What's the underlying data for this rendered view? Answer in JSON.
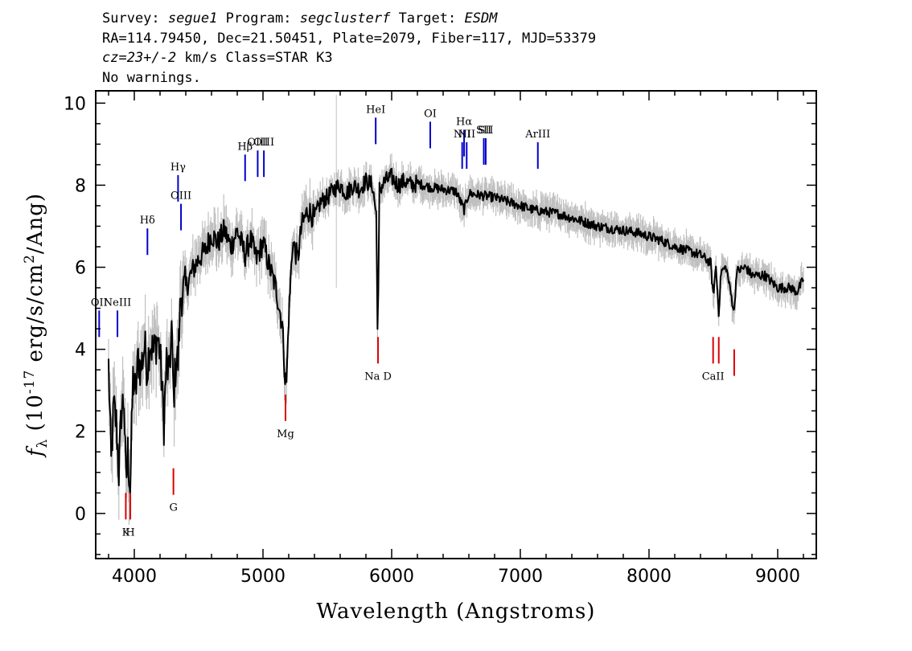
{
  "header": {
    "survey_label": "Survey:",
    "survey": "segue1",
    "program_label": "Program:",
    "program": "segclusterf",
    "target_label": "Target:",
    "target": "ESDM",
    "line2": "RA=114.79450, Dec=21.50451, Plate=2079, Fiber=117, MJD=53379",
    "cz": "cz=23+/-2",
    "cz_rest": " km/s Class=STAR K3",
    "warnings": "No warnings."
  },
  "chart_data": {
    "type": "line",
    "xlabel": "Wavelength (Angstroms)",
    "ylabel": "f_λ (10^-17 erg/s/cm^2/Ang)",
    "xlim": [
      3700,
      9300
    ],
    "ylim": [
      -1.1,
      10.3
    ],
    "xticks": [
      4000,
      5000,
      6000,
      7000,
      8000,
      9000
    ],
    "yticks": [
      0,
      2,
      4,
      6,
      8,
      10
    ],
    "colors": {
      "flux": "#000000",
      "error_band": "#c0c0c0",
      "emission": "#0000cc",
      "absorption": "#dd0000"
    },
    "series": [
      {
        "points": [
          [
            3800,
            3.6
          ],
          [
            3820,
            1.2
          ],
          [
            3840,
            2.6
          ],
          [
            3860,
            2.2
          ],
          [
            3880,
            1.0
          ],
          [
            3900,
            2.5
          ],
          [
            3920,
            2.8
          ],
          [
            3935,
            0.7
          ],
          [
            3950,
            1.5
          ],
          [
            3968,
            0.6
          ],
          [
            3990,
            3.3
          ],
          [
            4010,
            2.9
          ],
          [
            4030,
            3.8
          ],
          [
            4050,
            3.5
          ],
          [
            4080,
            4.1
          ],
          [
            4101,
            3.5
          ],
          [
            4120,
            4.2
          ],
          [
            4150,
            3.9
          ],
          [
            4180,
            4.3
          ],
          [
            4200,
            3.9
          ],
          [
            4230,
            2.2
          ],
          [
            4250,
            3.7
          ],
          [
            4270,
            3.3
          ],
          [
            4290,
            4.5
          ],
          [
            4305,
            2.8
          ],
          [
            4325,
            3.8
          ],
          [
            4340,
            3.7
          ],
          [
            4360,
            5.3
          ],
          [
            4400,
            5.5
          ],
          [
            4450,
            5.9
          ],
          [
            4500,
            6.2
          ],
          [
            4550,
            6.4
          ],
          [
            4600,
            6.8
          ],
          [
            4650,
            6.6
          ],
          [
            4700,
            6.9
          ],
          [
            4750,
            6.5
          ],
          [
            4800,
            6.9
          ],
          [
            4861,
            6.3
          ],
          [
            4900,
            6.7
          ],
          [
            4950,
            6.2
          ],
          [
            5000,
            6.6
          ],
          [
            5050,
            6.0
          ],
          [
            5100,
            5.5
          ],
          [
            5150,
            4.6
          ],
          [
            5172,
            3.3
          ],
          [
            5183,
            3.2
          ],
          [
            5200,
            4.8
          ],
          [
            5230,
            6.6
          ],
          [
            5270,
            6.2
          ],
          [
            5300,
            7.0
          ],
          [
            5350,
            7.4
          ],
          [
            5400,
            7.2
          ],
          [
            5450,
            7.6
          ],
          [
            5500,
            7.7
          ],
          [
            5550,
            7.9
          ],
          [
            5600,
            8.0
          ],
          [
            5650,
            7.8
          ],
          [
            5700,
            8.0
          ],
          [
            5750,
            7.9
          ],
          [
            5800,
            8.1
          ],
          [
            5850,
            8.0
          ],
          [
            5880,
            7.3
          ],
          [
            5890,
            4.7
          ],
          [
            5896,
            5.2
          ],
          [
            5905,
            7.9
          ],
          [
            5950,
            8.1
          ],
          [
            6000,
            8.2
          ],
          [
            6050,
            8.0
          ],
          [
            6100,
            8.1
          ],
          [
            6150,
            8.0
          ],
          [
            6200,
            8.05
          ],
          [
            6300,
            7.95
          ],
          [
            6400,
            7.9
          ],
          [
            6500,
            7.85
          ],
          [
            6563,
            7.4
          ],
          [
            6600,
            7.8
          ],
          [
            6700,
            7.75
          ],
          [
            6800,
            7.7
          ],
          [
            6900,
            7.6
          ],
          [
            7000,
            7.5
          ],
          [
            7100,
            7.4
          ],
          [
            7200,
            7.35
          ],
          [
            7300,
            7.3
          ],
          [
            7400,
            7.2
          ],
          [
            7500,
            7.1
          ],
          [
            7600,
            7.0
          ],
          [
            7700,
            6.95
          ],
          [
            7800,
            6.9
          ],
          [
            7900,
            6.85
          ],
          [
            8000,
            6.75
          ],
          [
            8100,
            6.65
          ],
          [
            8200,
            6.5
          ],
          [
            8300,
            6.4
          ],
          [
            8400,
            6.3
          ],
          [
            8480,
            6.1
          ],
          [
            8498,
            5.3
          ],
          [
            8520,
            6.0
          ],
          [
            8542,
            4.9
          ],
          [
            8560,
            5.9
          ],
          [
            8600,
            6.0
          ],
          [
            8662,
            4.9
          ],
          [
            8680,
            5.9
          ],
          [
            8750,
            6.0
          ],
          [
            8800,
            5.8
          ],
          [
            8900,
            5.8
          ],
          [
            9000,
            5.5
          ],
          [
            9100,
            5.5
          ],
          [
            9150,
            5.4
          ],
          [
            9200,
            5.7
          ]
        ]
      }
    ],
    "emission_lines": [
      {
        "label": "OII",
        "wave": 3727,
        "flux": 4.3
      },
      {
        "label": "NeIII",
        "wave": 3869,
        "flux": 4.3
      },
      {
        "label": "Hδ",
        "wave": 4102,
        "flux": 6.3
      },
      {
        "label": "Hγ",
        "wave": 4340,
        "flux": 7.6
      },
      {
        "label": "OIII",
        "wave": 4363,
        "flux": 6.9
      },
      {
        "label": "Hβ",
        "wave": 4861,
        "flux": 8.1
      },
      {
        "label": "OIII",
        "wave": 4959,
        "flux": 8.2
      },
      {
        "label": "OIII",
        "wave": 5007,
        "flux": 8.2
      },
      {
        "label": "HeI",
        "wave": 5876,
        "flux": 9.0
      },
      {
        "label": "OI",
        "wave": 6300,
        "flux": 8.9
      },
      {
        "label": "NII",
        "wave": 6548,
        "flux": 8.4
      },
      {
        "label": "Hα",
        "wave": 6563,
        "flux": 8.7
      },
      {
        "label": "NII",
        "wave": 6583,
        "flux": 8.4
      },
      {
        "label": "SII",
        "wave": 6716,
        "flux": 8.5
      },
      {
        "label": "SII",
        "wave": 6731,
        "flux": 8.5
      },
      {
        "label": "ArIII",
        "wave": 7136,
        "flux": 8.4
      }
    ],
    "absorption_lines": [
      {
        "label": "K",
        "wave": 3934,
        "flux": 0.5
      },
      {
        "label": "H",
        "wave": 3969,
        "flux": 0.5
      },
      {
        "label": "G",
        "wave": 4304,
        "flux": 1.1
      },
      {
        "label": "Mg",
        "wave": 5175,
        "flux": 2.9
      },
      {
        "label": "Na D",
        "wave": 5894,
        "flux": 4.3
      },
      {
        "label": "CaII",
        "wave": 8498,
        "flux": 4.3
      },
      {
        "label": "CaII",
        "wave": 8542,
        "flux": 4.3
      },
      {
        "label": "CaII",
        "wave": 8662,
        "flux": 4.0
      }
    ]
  }
}
